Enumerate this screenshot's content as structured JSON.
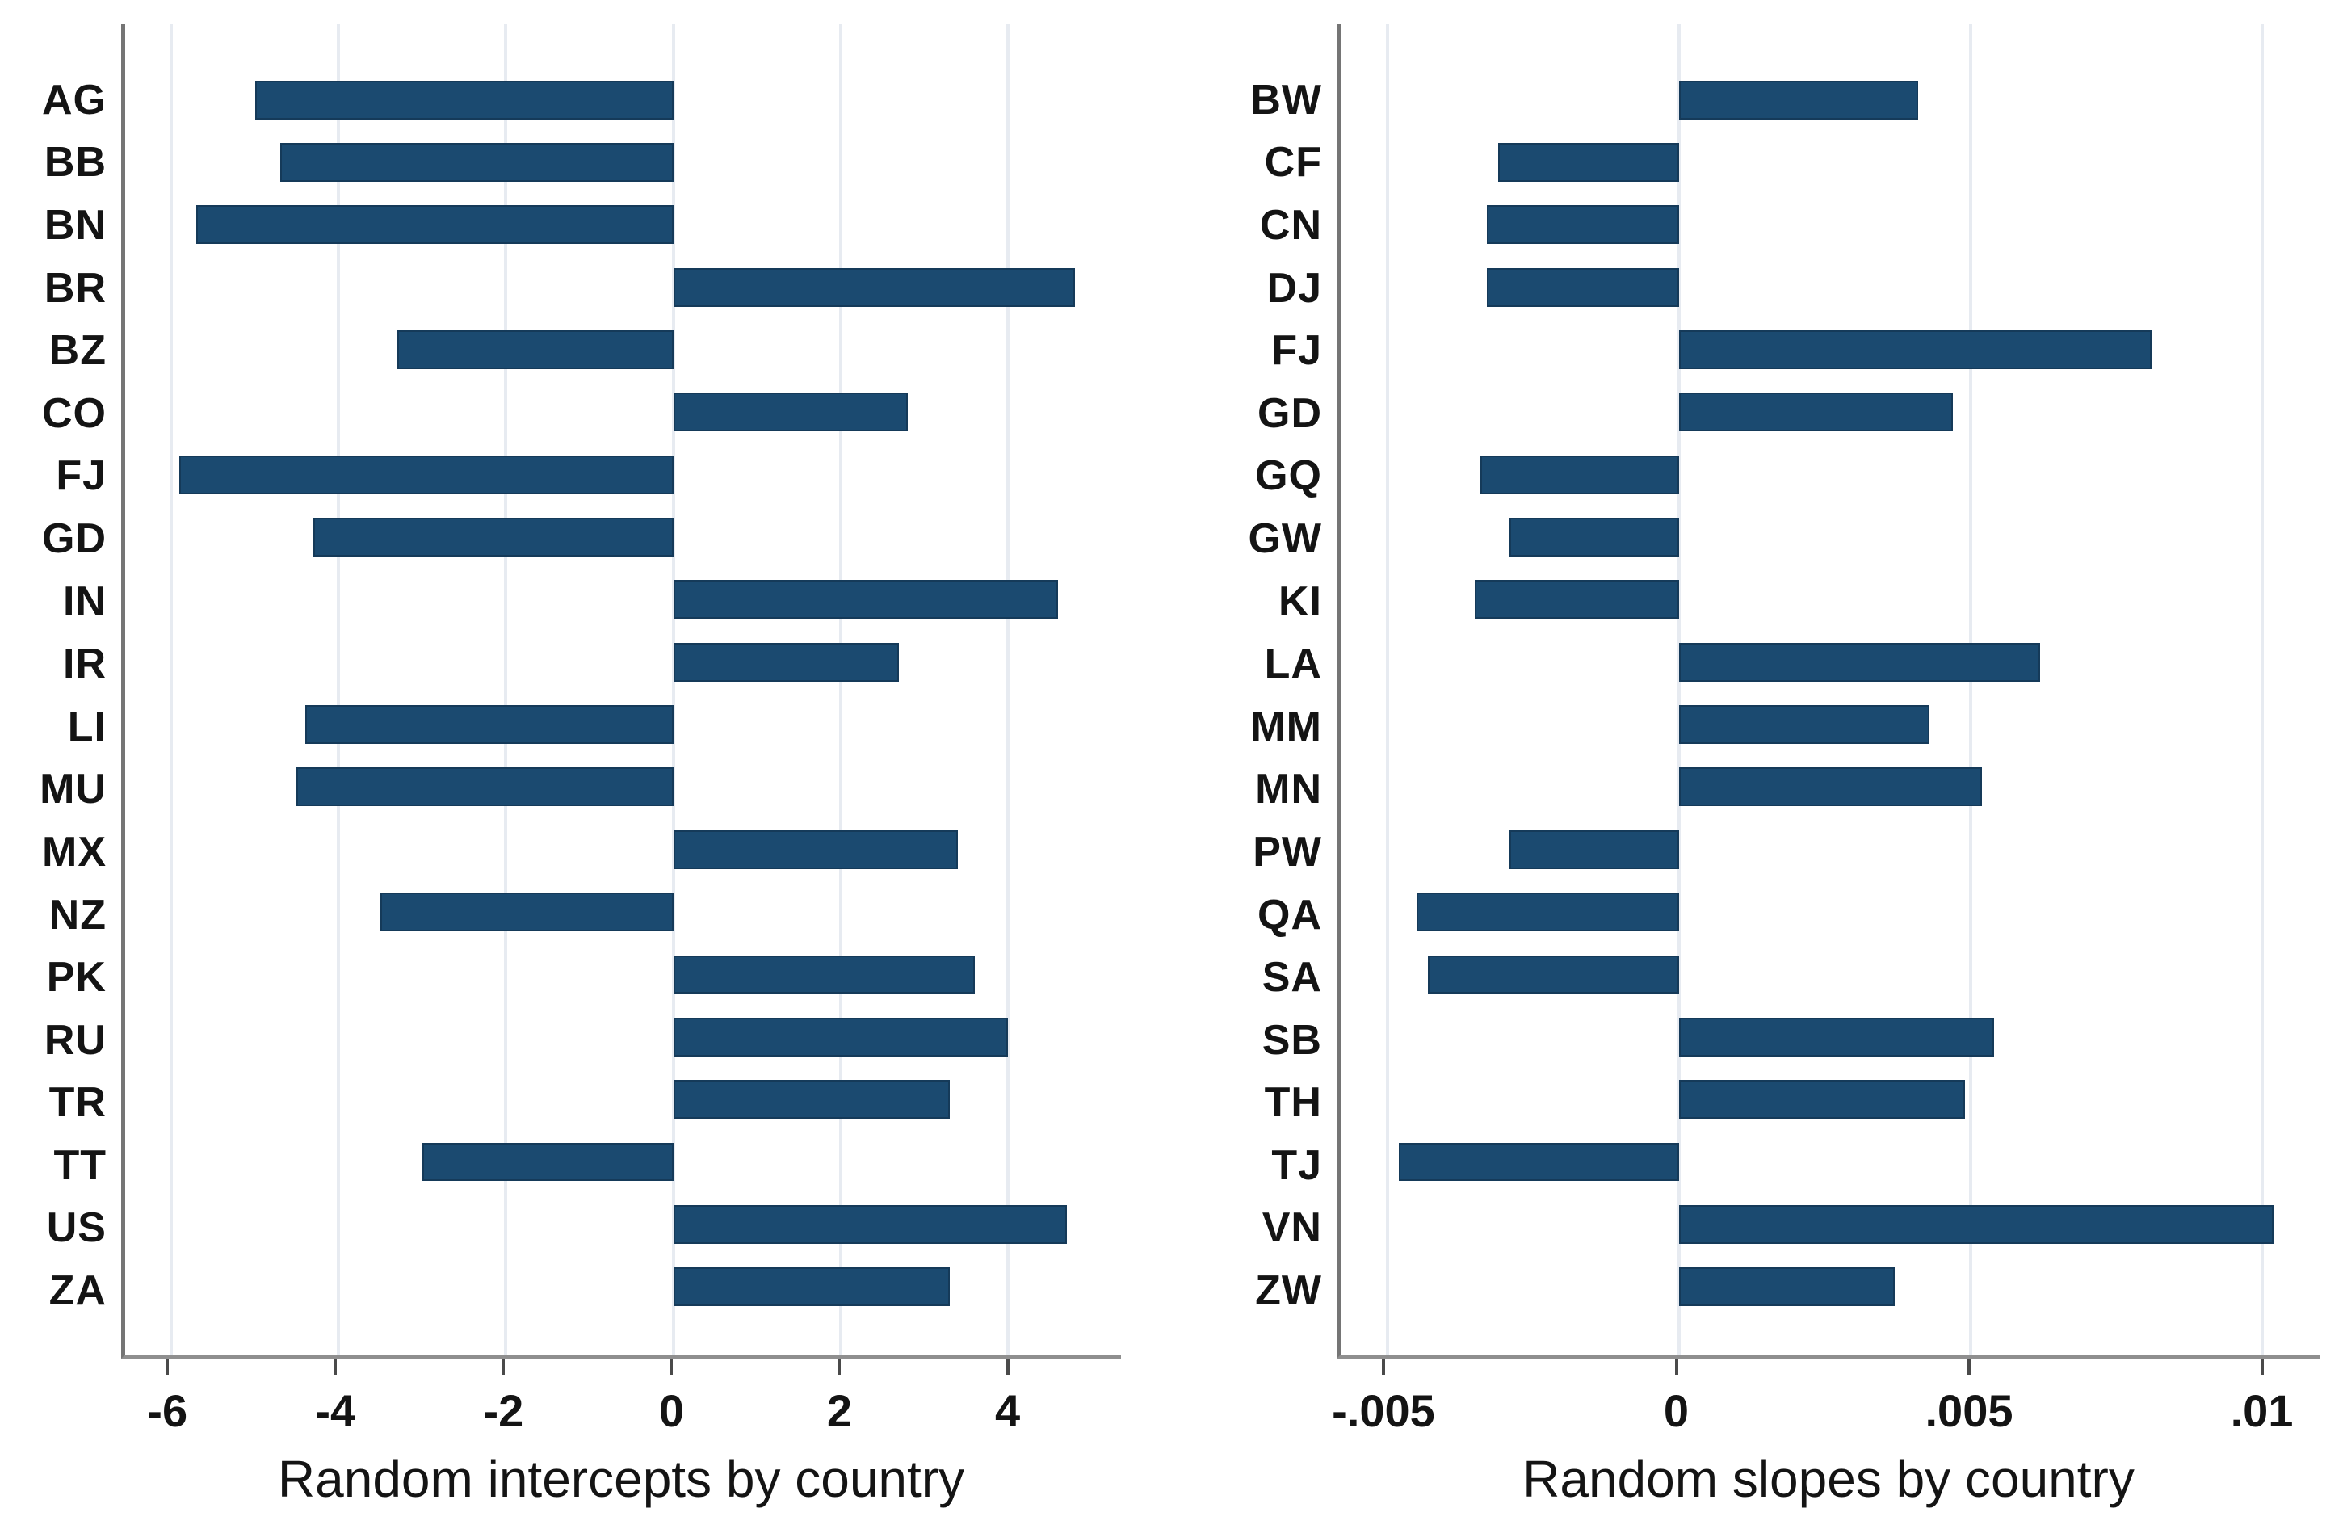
{
  "figure": {
    "bar_color": "#1b4a70",
    "bar_border_color": "#153a59",
    "gridline_color": "#e7ebf1",
    "axis_line_color": "#8f8f8f"
  },
  "chart_data": [
    {
      "type": "bar",
      "orientation": "horizontal",
      "title": "",
      "xlabel": "Random intercepts by country",
      "ylabel": "",
      "grid": true,
      "legend": null,
      "xlim": [
        -6.55,
        5.35
      ],
      "xticks": [
        {
          "value": -6,
          "label": "-6"
        },
        {
          "value": -4,
          "label": "-4"
        },
        {
          "value": -2,
          "label": "-2"
        },
        {
          "value": 0,
          "label": "0"
        },
        {
          "value": 2,
          "label": "2"
        },
        {
          "value": 4,
          "label": "4"
        }
      ],
      "categories": [
        "AG",
        "BB",
        "BN",
        "BR",
        "BZ",
        "CO",
        "FJ",
        "GD",
        "IN",
        "IR",
        "LI",
        "MU",
        "MX",
        "NZ",
        "PK",
        "RU",
        "TR",
        "TT",
        "US",
        "ZA"
      ],
      "values": [
        -5.0,
        -4.7,
        -5.7,
        4.8,
        -3.3,
        2.8,
        -5.9,
        -4.3,
        4.6,
        2.7,
        -4.4,
        -4.5,
        3.4,
        -3.5,
        3.6,
        4.0,
        3.3,
        -3.0,
        4.7,
        3.3
      ]
    },
    {
      "type": "bar",
      "orientation": "horizontal",
      "title": "",
      "xlabel": "Random slopes by country",
      "ylabel": "",
      "grid": true,
      "legend": null,
      "xlim": [
        -0.0058,
        0.011
      ],
      "xticks": [
        {
          "value": -0.005,
          "label": "-.005"
        },
        {
          "value": 0,
          "label": "0"
        },
        {
          "value": 0.005,
          "label": ".005"
        },
        {
          "value": 0.01,
          "label": ".01"
        }
      ],
      "categories": [
        "BW",
        "CF",
        "CN",
        "DJ",
        "FJ",
        "GD",
        "GQ",
        "GW",
        "KI",
        "LA",
        "MM",
        "MN",
        "PW",
        "QA",
        "SA",
        "SB",
        "TH",
        "TJ",
        "VN",
        "ZW"
      ],
      "values": [
        0.0041,
        -0.0031,
        -0.0033,
        -0.0033,
        0.0081,
        0.0047,
        -0.0034,
        -0.0029,
        -0.0035,
        0.0062,
        0.0043,
        0.0052,
        -0.0029,
        -0.0045,
        -0.0043,
        0.0054,
        0.0049,
        -0.0048,
        0.0102,
        0.0037
      ]
    }
  ]
}
